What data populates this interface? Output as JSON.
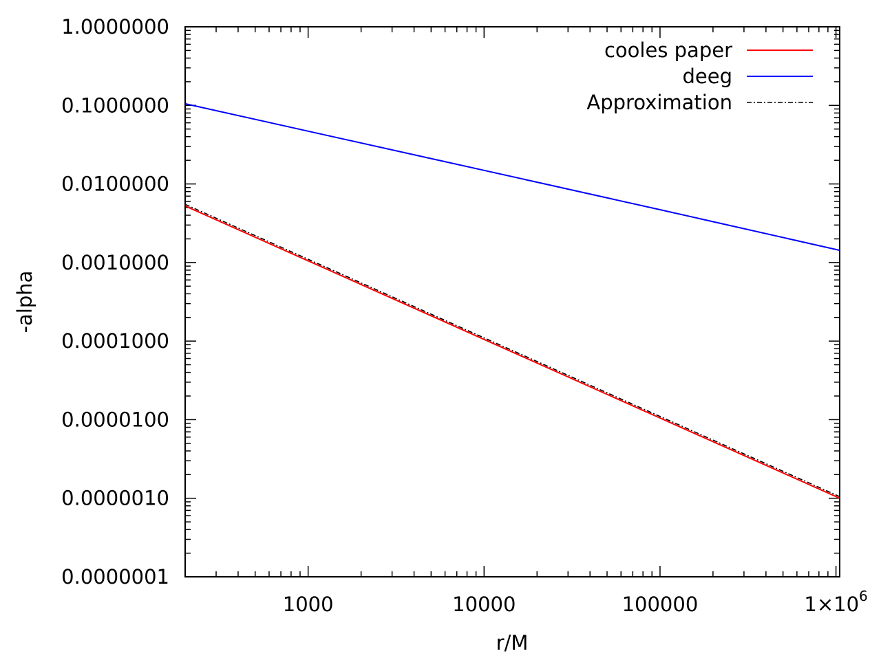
{
  "chart_data": {
    "type": "line",
    "x_scale": "log",
    "y_scale": "log",
    "xlabel": "r/M",
    "ylabel": "-alpha",
    "xlim": [
      200,
      1050000
    ],
    "ylim": [
      1e-07,
      1.0
    ],
    "x_ticks": [
      {
        "value": 1000,
        "label": "1000"
      },
      {
        "value": 10000,
        "label": "10000"
      },
      {
        "value": 100000,
        "label": "100000"
      },
      {
        "value": 1000000,
        "label": "1×10",
        "exp": "6"
      }
    ],
    "y_ticks": [
      {
        "value": 1.0,
        "label": "1.0000000"
      },
      {
        "value": 0.1,
        "label": "0.1000000"
      },
      {
        "value": 0.01,
        "label": "0.0100000"
      },
      {
        "value": 0.001,
        "label": "0.0010000"
      },
      {
        "value": 0.0001,
        "label": "0.0001000"
      },
      {
        "value": 1e-05,
        "label": "0.0000100"
      },
      {
        "value": 1e-06,
        "label": "0.0000010"
      },
      {
        "value": 1e-07,
        "label": "0.0000001"
      }
    ],
    "legend": "top-right",
    "grid": false,
    "series": [
      {
        "name": "cooles paper",
        "color": "#ff0000",
        "dash": "solid",
        "x": [
          200,
          1000,
          10000,
          100000,
          1050000
        ],
        "y": [
          0.00525,
          0.00105,
          0.000105,
          1.05e-05,
          1e-06
        ]
      },
      {
        "name": "deeg",
        "color": "#0000ff",
        "dash": "solid",
        "x": [
          200,
          1000,
          10000,
          100000,
          1050000
        ],
        "y": [
          0.105,
          0.047,
          0.0149,
          0.0047,
          0.00143
        ]
      },
      {
        "name": "Approximation",
        "color": "#000000",
        "dash": "dashdot",
        "x": [
          200,
          1000,
          10000,
          100000,
          1050000
        ],
        "y": [
          0.0055,
          0.0011,
          0.00011,
          1.1e-05,
          1.05e-06
        ]
      }
    ]
  }
}
